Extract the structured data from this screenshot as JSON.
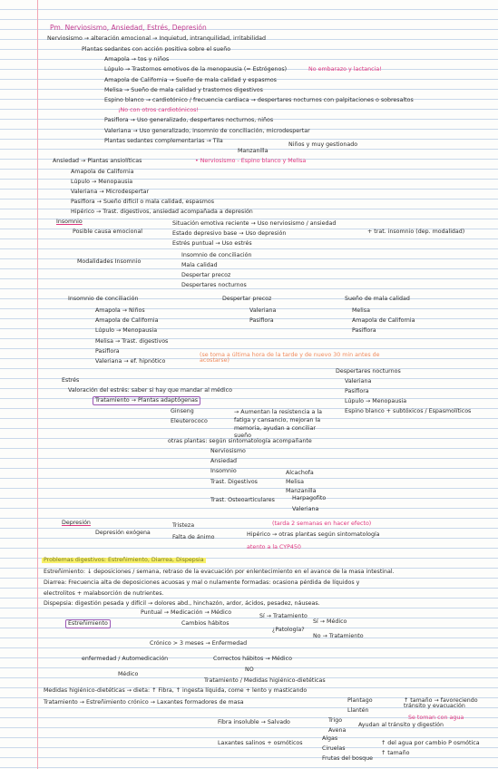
{
  "notes": {
    "lines": [
      "Pm. Nerviosismo, Ansiedad, Estrés, Depresión",
      "Nerviosismo → alteración emocional → Inquietud, intranquilidad, irritabilidad",
      "Plantas sedantes con acción positiva sobre el sueño",
      "Amapola → tos y niños",
      "Lúpulo → Trastornos emotivos de la menopausia (≈ Estrógenos)",
      "No embarazo y lactancia!",
      "Amapola de California → Sueño de mala calidad y espasmos",
      "Melisa → Sueño de mala calidad y trastornos digestivos",
      "Espino blanco → cardiotónico / frecuencia cardiaca → despertares nocturnos con palpitaciones o sobresaltos",
      "¡No con otros cardiotónicos!",
      "Pasiflora → Uso generalizado, despertares nocturnos, niños",
      "Valeriana → Uso generalizado, insomnio de conciliación, microdespertar",
      "Plantas sedantes complementarias → Tila",
      "Manzanilla",
      "Niños y muy gestionado",
      "Ansiedad → Plantas ansiolíticas",
      "• Nerviosismo - Espino blanco y Melisa",
      "Amapola de California",
      "Lúpulo → Menopausia",
      "Valeriana → Microdespertar",
      "Pasiflora → Sueño difícil o mala calidad, espasmos",
      "Hipérico → Trast. digestivos, ansiedad acompañada a depresión",
      "Insomnio",
      "Posible causa emocional",
      "Situación emotiva reciente → Uso nerviosismo / ansiedad",
      "Estado depresivo base → Uso depresión",
      "Estrés puntual → Uso estrés",
      "+ trat. insomnio (dep. modalidad)",
      "Modalidades Insomnio",
      "Insomnio de conciliación",
      "Mala calidad",
      "Despertar precoz",
      "Despertares nocturnos",
      "Insomnio de conciliación",
      "Despertar precoz",
      "Sueño de mala calidad",
      "Amapola → Niños",
      "Amapola de California",
      "Lúpulo → Menopausia",
      "Melisa → Trast. digestivos",
      "Pasiflora",
      "Valeriana → ef. hipnótico",
      "(se toma a última hora de la tarde y de nuevo 30 min antes de acostarse)",
      "Valeriana",
      "Pasiflora",
      "Melisa",
      "Amapola de California",
      "Pasiflora",
      "Despertares nocturnos",
      "Valeriana",
      "Pasiflora",
      "Lúpulo → Menopausia",
      "Espino blanco + subtóxicos / Espasmolíticos",
      "Estrés",
      "Valoración del estrés: saber si hay que mandar al médico",
      "Tratamiento → Plantas adaptógenas",
      "Ginseng",
      "Eleuterococo",
      "→ Aumentan la resistencia a la fatiga y cansancio, mejoran la memoria, ayudan a conciliar sueño",
      "otras plantas: según sintomatología acompañante",
      "Nerviosismo",
      "Ansiedad",
      "Insomnio",
      "Trast. Digestivos",
      "Alcachofa",
      "Melisa",
      "Manzanilla",
      "Trast. Osteoarticulares",
      "Harpagofito",
      "Valeriana",
      "Depresión",
      "Depresión exógena",
      "Tristeza",
      "Falta de ánimo",
      "(tarda 2 semanas en hacer efecto)",
      "Hipérico → otras plantas según sintomatología",
      "atento a la CYP450",
      "Problemas digestivos: Estreñimiento, Diarrea, Dispepsia",
      "Estreñimiento: ↓ deposiciones / semana, retraso de la evacuación por enlentecimiento en el avance de la masa intestinal.",
      "Diarrea: Frecuencia alta de deposiciones acuosas y mal o nulamente formadas: ocasiona pérdida de líquidos y",
      "electrolitos + malabsorción de nutrientes.",
      "Dispepsia: digestión pesada y difícil → dolores abd., hinchazón, ardor, ácidos, pesadez, náuseas.",
      "Estreñimiento",
      "Puntual → Medicación → Médico",
      "Cambios hábitos",
      "Sí → Tratamiento",
      "¿Patología?",
      "Sí → Médico",
      "No → Tratamiento",
      "Crónico > 3 meses → Enfermedad",
      "enfermedad / Automedicación",
      "Correctos hábitos → Médico",
      "NO",
      "Médico",
      "Tratamiento / Medidas higiénico-dietéticas",
      "Medidas higiénico-dietéticas → dieta: ↑ Fibra, ↑ ingesta líquida, come + lento y masticando",
      "Tratamiento → Estreñimiento crónico → Laxantes formadores de masa",
      "Plantago",
      "Llantén",
      "↑ tamaño → favoreciendo tránsito y evacuación",
      "Se toman con agua",
      "Fibra insoluble → Salvado",
      "Trigo",
      "Avena",
      "Ayudan al tránsito y digestión",
      "Laxantes salinos + osmóticos",
      "Algas",
      "Ciruelas",
      "Frutas del bosque",
      "↑ del agua por cambio P osmótica",
      "↑ tamaño"
    ]
  }
}
